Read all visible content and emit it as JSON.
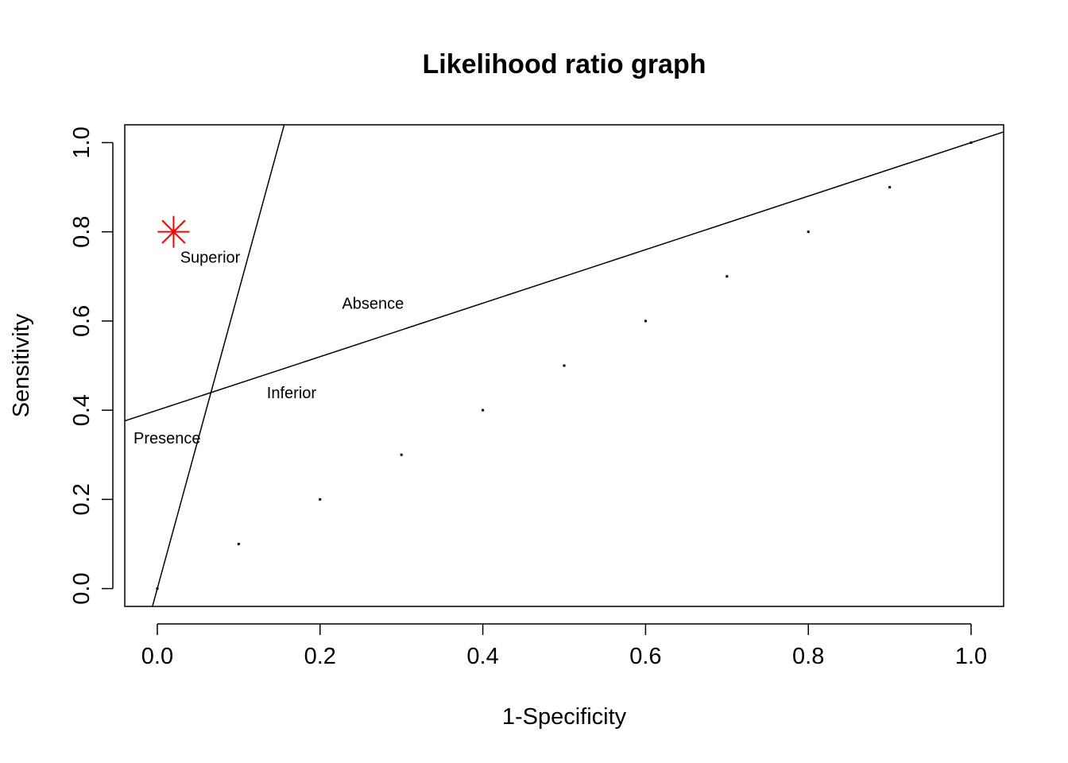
{
  "chart_data": {
    "type": "scatter",
    "title": "Likelihood ratio graph",
    "xlabel": "1-Specificity",
    "ylabel": "Sensitivity",
    "xlim": [
      -0.04,
      1.04
    ],
    "ylim": [
      -0.04,
      1.04
    ],
    "x_ticks": [
      "0.0",
      "0.2",
      "0.4",
      "0.6",
      "0.8",
      "1.0"
    ],
    "y_ticks": [
      "0.0",
      "0.2",
      "0.4",
      "0.6",
      "0.8",
      "1.0"
    ],
    "grid": false,
    "series": [
      {
        "marker": "dot",
        "color": "#000000",
        "x": [
          0.0,
          0.1,
          0.2,
          0.3,
          0.4,
          0.5,
          0.6,
          0.7,
          0.8,
          0.9,
          1.0
        ],
        "y": [
          0.0,
          0.1,
          0.2,
          0.3,
          0.4,
          0.5,
          0.6,
          0.7,
          0.8,
          0.9,
          1.0
        ]
      },
      {
        "marker": "asterisk",
        "color": "#ff0000",
        "x": [
          0.02
        ],
        "y": [
          0.8
        ]
      }
    ],
    "reference_lines": [
      {
        "slope": 6.67,
        "intercept": 0.0,
        "color": "#000000"
      },
      {
        "slope": 0.6,
        "intercept": 0.4,
        "color": "#000000"
      }
    ],
    "annotations": [
      {
        "text": "Superior",
        "x": 0.065,
        "y": 0.74
      },
      {
        "text": "Absence",
        "x": 0.265,
        "y": 0.637
      },
      {
        "text": "Inferior",
        "x": 0.165,
        "y": 0.436
      },
      {
        "text": "Presence",
        "x": 0.012,
        "y": 0.335
      }
    ]
  }
}
